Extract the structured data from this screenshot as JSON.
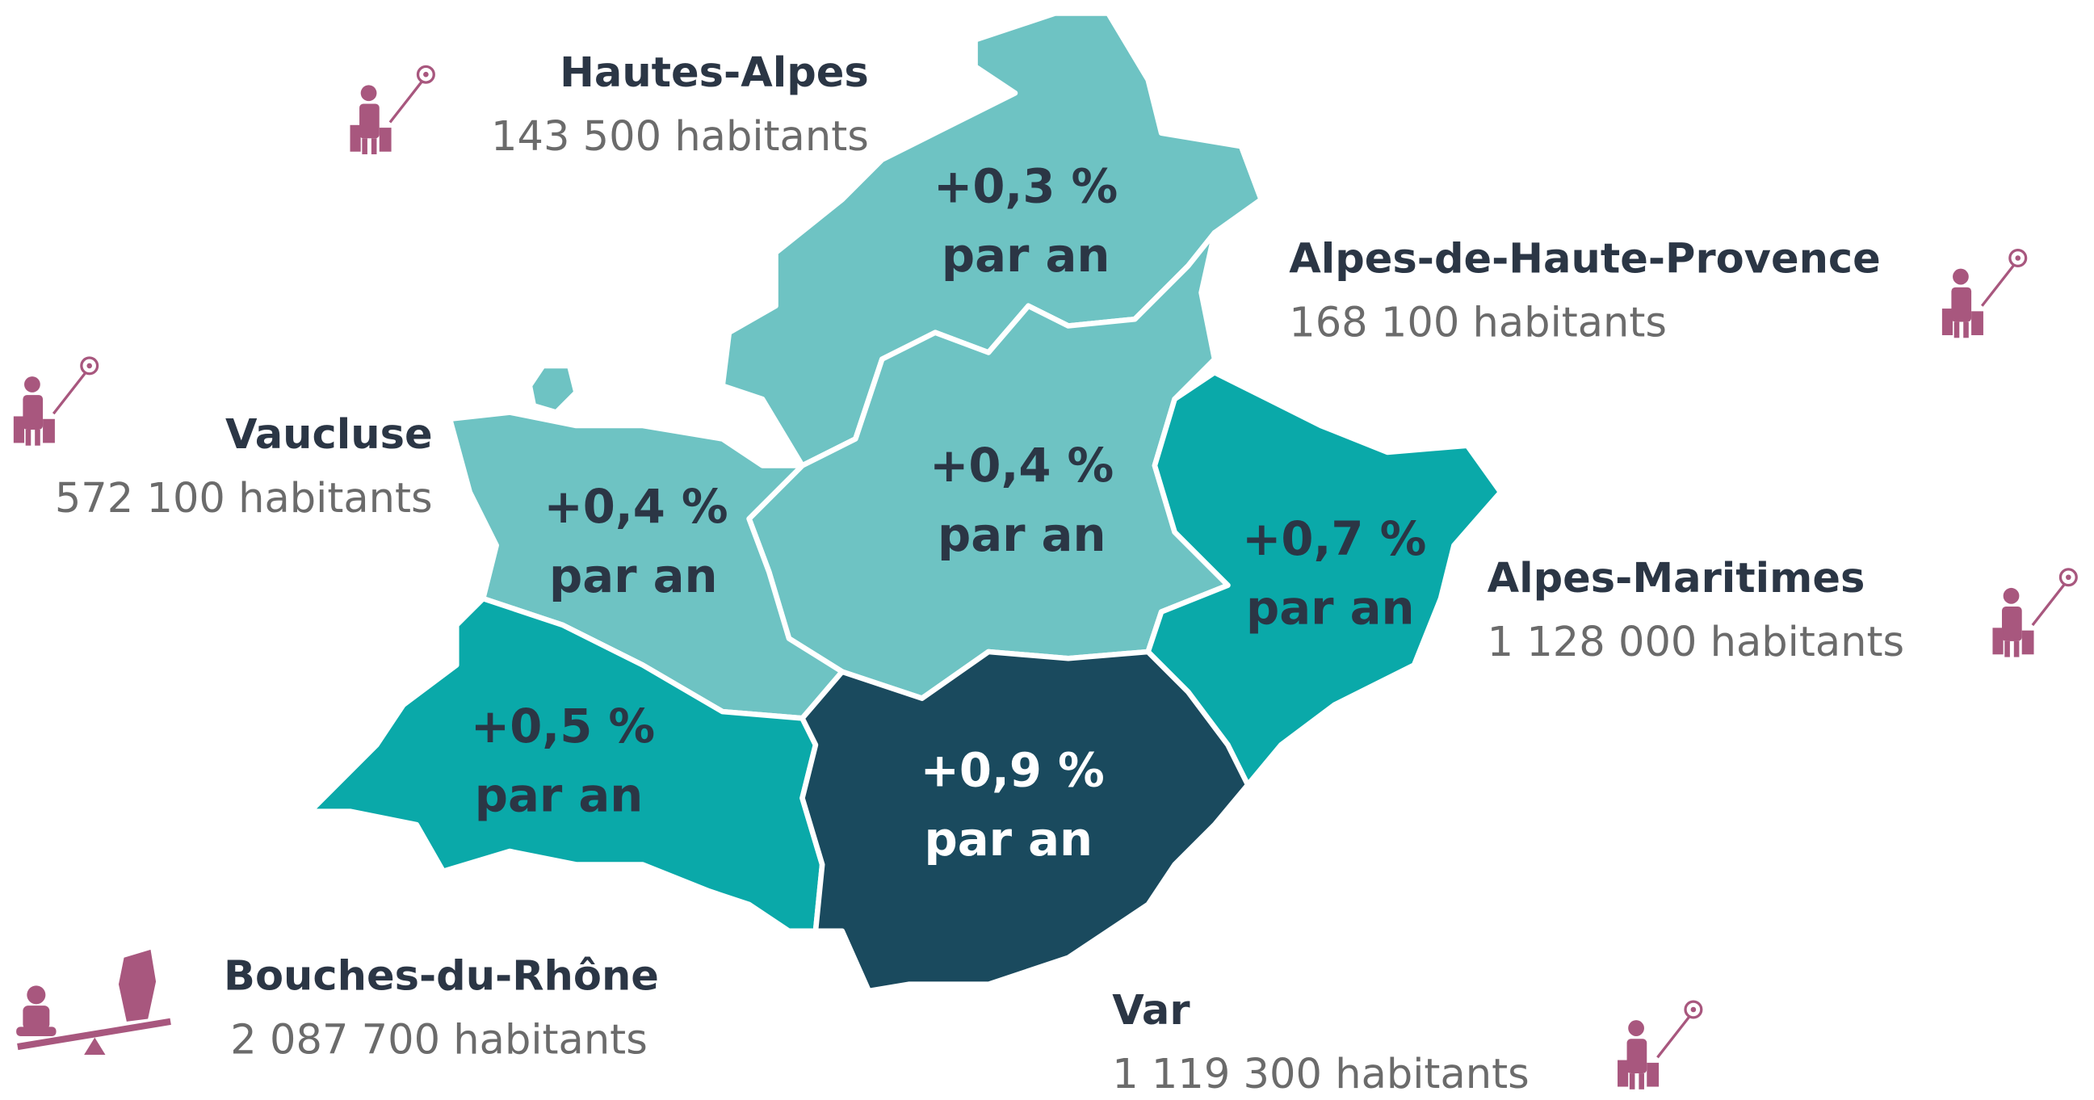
{
  "regions": [
    {
      "name": "Hautes-Alpes",
      "population": "143 500 habitants",
      "growth": "+0,3 %",
      "growth_unit": "par an"
    },
    {
      "name": "Alpes-de-Haute-Provence",
      "population": "168 100 habitants",
      "growth": "+0,4 %",
      "growth_unit": "par an"
    },
    {
      "name": "Vaucluse",
      "population": "572 100 habitants",
      "growth": "+0,4 %",
      "growth_unit": "par an"
    },
    {
      "name": "Alpes-Maritimes",
      "population": "1 128 000 habitants",
      "growth": "+0,7 %",
      "growth_unit": "par an"
    },
    {
      "name": "Bouches-du-Rhône",
      "population": "2 087 700 habitants",
      "growth": "+0,5 %",
      "growth_unit": "par an"
    },
    {
      "name": "Var",
      "population": "1 119 300 habitants",
      "growth": "+0,9 %",
      "growth_unit": "par an"
    }
  ]
}
